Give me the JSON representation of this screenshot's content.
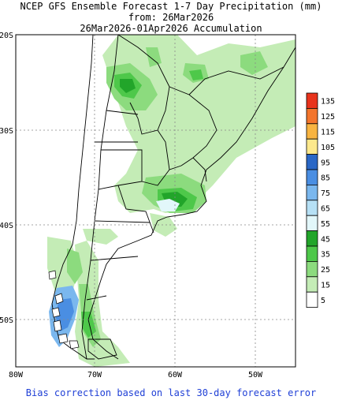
{
  "header": {
    "title_line1": "NCEP GFS Ensemble Forecast 1-7 Day Precipitation (mm)",
    "title_line2": "from: 26Mar2026",
    "title_line3": "26Mar2026-01Apr2026 Accumulation"
  },
  "axes": {
    "lat_labels": [
      "20S",
      "30S",
      "40S",
      "50S"
    ],
    "lon_labels": [
      "80W",
      "70W",
      "60W",
      "50W"
    ]
  },
  "legend": {
    "items": [
      {
        "label": "135",
        "color": "#e8331c"
      },
      {
        "label": "125",
        "color": "#f3752c"
      },
      {
        "label": "115",
        "color": "#f8b441"
      },
      {
        "label": "105",
        "color": "#fde88c"
      },
      {
        "label": "95",
        "color": "#2a67c6"
      },
      {
        "label": "85",
        "color": "#4a8ee2"
      },
      {
        "label": "75",
        "color": "#7ab7ee"
      },
      {
        "label": "65",
        "color": "#b6e0f5"
      },
      {
        "label": "55",
        "color": "#e2f7fa"
      },
      {
        "label": "45",
        "color": "#22a52a"
      },
      {
        "label": "35",
        "color": "#4ec84a"
      },
      {
        "label": "25",
        "color": "#8cdb7e"
      },
      {
        "label": "15",
        "color": "#c4ecb6"
      },
      {
        "label": "5",
        "color": "#ffffff"
      }
    ]
  },
  "footer": {
    "note": "Bias correction based on last 30-day forecast error"
  }
}
